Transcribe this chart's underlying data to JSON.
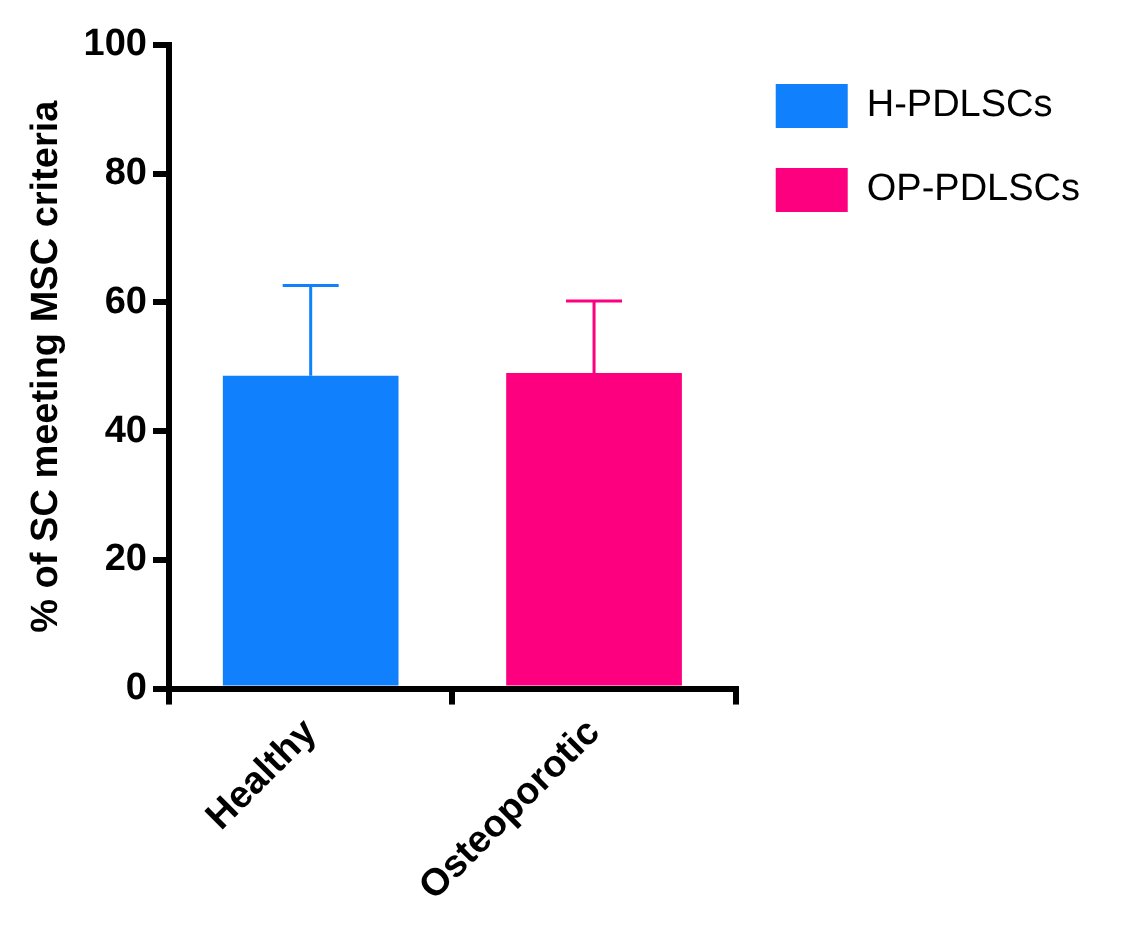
{
  "chart_data": {
    "type": "bar",
    "ylabel": "% of SC meeting MSC criteria",
    "categories": [
      "Healthy",
      "Osteoporotic"
    ],
    "series": [
      {
        "name": "H-PDLSCs",
        "color": "#1080fc",
        "values": [
          48.6,
          null
        ],
        "errors": [
          [
            48.6,
            62.6
          ],
          null
        ]
      },
      {
        "name": "OP-PDLSCs",
        "color": "#fc0080",
        "values": [
          null,
          49
        ],
        "errors": [
          null,
          [
            49,
            60.2
          ]
        ]
      }
    ],
    "ylim": [
      0,
      100
    ],
    "yticks": [
      0,
      20,
      40,
      60,
      80,
      100
    ],
    "grid": false,
    "legend": "top right"
  }
}
